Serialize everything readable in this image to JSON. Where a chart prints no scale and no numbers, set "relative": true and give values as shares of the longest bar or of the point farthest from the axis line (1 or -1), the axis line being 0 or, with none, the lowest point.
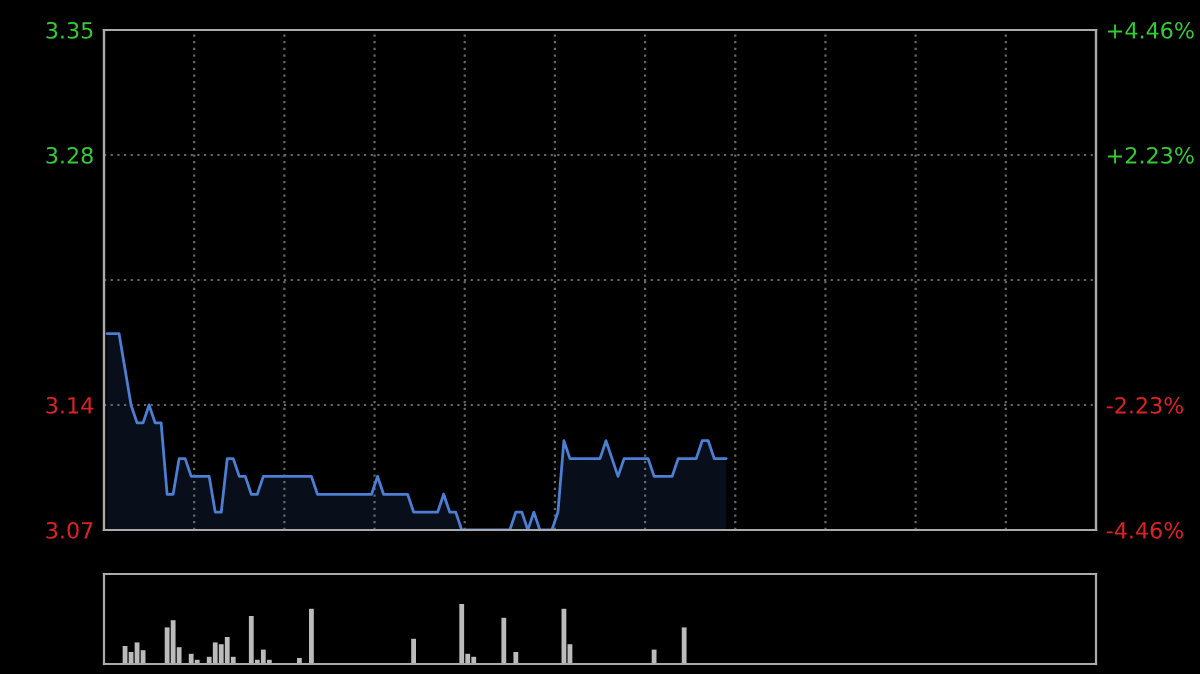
{
  "chart_data": [
    {
      "type": "area",
      "categories": [
        null,
        null,
        null,
        null,
        null,
        null,
        null,
        null,
        null,
        null,
        null,
        null,
        null,
        null,
        null,
        null,
        null,
        null,
        null,
        null,
        null,
        null,
        null,
        null,
        null,
        null,
        null,
        null,
        null,
        null,
        null,
        null,
        null,
        null,
        null,
        null,
        null,
        null,
        null,
        null,
        null,
        null,
        null,
        null,
        null,
        null,
        null,
        null,
        null,
        null,
        null,
        null,
        null,
        null,
        null,
        null,
        null,
        null,
        null,
        null,
        null,
        null,
        null,
        null,
        null,
        null,
        null,
        null,
        null,
        null,
        null,
        null,
        null,
        null,
        null,
        null,
        null,
        null,
        null,
        null,
        null,
        null,
        null,
        null,
        null,
        null,
        null,
        null,
        null,
        null,
        null,
        null,
        null,
        null,
        null,
        null,
        null,
        null,
        null,
        null,
        null,
        null,
        null,
        null,
        null,
        null,
        null,
        null,
        null,
        null,
        null,
        null,
        null,
        null,
        null,
        null,
        null,
        null,
        null,
        null,
        null,
        null,
        null,
        null,
        null,
        null,
        null,
        null,
        null,
        null,
        null,
        null,
        null,
        null,
        null,
        null,
        null,
        null,
        null,
        null,
        null,
        null,
        null,
        null,
        null,
        null,
        null,
        null,
        null,
        null,
        null,
        null,
        null,
        null,
        null,
        null,
        null,
        null,
        null,
        null,
        null,
        null,
        null,
        null,
        null
      ],
      "series": [
        {
          "color": "#4a7fd4",
          "values": [
            3.18,
            3.18,
            3.18,
            3.16,
            3.14,
            3.13,
            3.13,
            3.14,
            3.13,
            3.13,
            3.09,
            3.09,
            3.11,
            3.11,
            3.1,
            3.1,
            3.1,
            3.1,
            3.08,
            3.08,
            3.11,
            3.11,
            3.1,
            3.1,
            3.09,
            3.09,
            3.1,
            3.1,
            3.1,
            3.1,
            3.1,
            3.1,
            3.1,
            3.1,
            3.1,
            3.09,
            3.09,
            3.09,
            3.09,
            3.09,
            3.09,
            3.09,
            3.09,
            3.09,
            3.09,
            3.1,
            3.09,
            3.09,
            3.09,
            3.09,
            3.09,
            3.08,
            3.08,
            3.08,
            3.08,
            3.08,
            3.09,
            3.08,
            3.08,
            3.07,
            3.07,
            3.07,
            3.07,
            3.07,
            3.07,
            3.07,
            3.07,
            3.07,
            3.08,
            3.08,
            3.07,
            3.08,
            3.07,
            3.07,
            3.07,
            3.08,
            3.12,
            3.11,
            3.11,
            3.11,
            3.11,
            3.11,
            3.11,
            3.12,
            3.11,
            3.1,
            3.11,
            3.11,
            3.11,
            3.11,
            3.11,
            3.1,
            3.1,
            3.1,
            3.1,
            3.11,
            3.11,
            3.11,
            3.11,
            3.12,
            3.12,
            3.11,
            3.11,
            3.11,
            null,
            null,
            null,
            null,
            null,
            null,
            null,
            null,
            null,
            null,
            null,
            null,
            null,
            null,
            null,
            null,
            null,
            null,
            null,
            null,
            null,
            null,
            null,
            null,
            null,
            null,
            null,
            null,
            null,
            null,
            null,
            null,
            null,
            null,
            null,
            null,
            null,
            null,
            null,
            null,
            null,
            null,
            null,
            null,
            null,
            null,
            null,
            null,
            null,
            null,
            null,
            null,
            null,
            null,
            null,
            null,
            null,
            null,
            null,
            null,
            null
          ]
        }
      ],
      "ylim": [
        3.07,
        3.35
      ],
      "yticks": [
        3.07,
        3.14,
        {
          "value": 3.21,
          "label": null
        },
        3.28,
        3.35
      ],
      "y2lim": [
        -4.46,
        4.46
      ],
      "y2ticks": [
        {
          "value": -4.46,
          "label": "-4.46%"
        },
        {
          "value": -2.23,
          "label": "-2.23%"
        },
        {
          "value": 0,
          "label": null
        },
        {
          "value": 2.23,
          "label": "+2.23%"
        },
        {
          "value": 4.46,
          "label": "+4.46%"
        }
      ],
      "tick_labels": "y",
      "grid": true
    },
    {
      "type": "bar",
      "relative": true,
      "categories": [
        null,
        null,
        null,
        null,
        null,
        null,
        null,
        null,
        null,
        null,
        null,
        null,
        null,
        null,
        null,
        null,
        null,
        null,
        null,
        null,
        null,
        null,
        null,
        null,
        null,
        null,
        null,
        null,
        null,
        null,
        null,
        null,
        null,
        null,
        null,
        null,
        null,
        null,
        null,
        null,
        null,
        null,
        null,
        null,
        null,
        null,
        null,
        null,
        null,
        null,
        null,
        null,
        null,
        null,
        null,
        null,
        null,
        null,
        null,
        null,
        null,
        null,
        null,
        null,
        null,
        null,
        null,
        null,
        null,
        null,
        null,
        null,
        null,
        null,
        null,
        null,
        null,
        null,
        null,
        null,
        null,
        null,
        null,
        null,
        null,
        null,
        null,
        null,
        null,
        null,
        null,
        null,
        null,
        null,
        null,
        null,
        null,
        null,
        null,
        null,
        null,
        null,
        null,
        null,
        null,
        null,
        null,
        null,
        null,
        null,
        null,
        null,
        null,
        null,
        null,
        null,
        null,
        null,
        null,
        null,
        null,
        null,
        null,
        null,
        null,
        null,
        null,
        null,
        null,
        null,
        null,
        null,
        null,
        null,
        null,
        null,
        null,
        null,
        null,
        null,
        null,
        null,
        null,
        null,
        null,
        null,
        null,
        null,
        null,
        null,
        null,
        null,
        null,
        null,
        null,
        null,
        null,
        null,
        null,
        null,
        null,
        null,
        null,
        null,
        null
      ],
      "series": [
        {
          "color": "#bbbbbb",
          "values": [
            0,
            0,
            0,
            0.3,
            0.2,
            0.36,
            0.23,
            0,
            0,
            0,
            0.61,
            0.73,
            0.28,
            0,
            0.17,
            0.07,
            0,
            0.12,
            0.36,
            0.33,
            0.45,
            0.12,
            0,
            0,
            0.8,
            0.07,
            0.24,
            0.07,
            0,
            0,
            0,
            0,
            0.1,
            0,
            0.92,
            0,
            0,
            0,
            0,
            0,
            0,
            0,
            0,
            0,
            0,
            0,
            0,
            0,
            0,
            0,
            0,
            0.42,
            0,
            0,
            0,
            0,
            0,
            0,
            0,
            1,
            0.17,
            0.12,
            0,
            0,
            0,
            0,
            0.77,
            0,
            0.2,
            0,
            0,
            0,
            0,
            0,
            0,
            0,
            0.92,
            0.33,
            0,
            0,
            0,
            0,
            0,
            0,
            0,
            0,
            0,
            0,
            0,
            0,
            0,
            0.24,
            0,
            0,
            0,
            0,
            0.61,
            0,
            0,
            0,
            0,
            0,
            0,
            0,
            null,
            null,
            null,
            null,
            null,
            null,
            null,
            null,
            null,
            null,
            null,
            null,
            null,
            null,
            null,
            null,
            null,
            null,
            null,
            null,
            null,
            null,
            null,
            null,
            null,
            null,
            null,
            null,
            null,
            null,
            null,
            null,
            null,
            null,
            null,
            null,
            null,
            null,
            null,
            null,
            null,
            null,
            null,
            null,
            null,
            null,
            null,
            null,
            null,
            null,
            null,
            null,
            null,
            null,
            null,
            null,
            null,
            null,
            null,
            null,
            null
          ]
        }
      ],
      "tick_labels": false
    }
  ]
}
